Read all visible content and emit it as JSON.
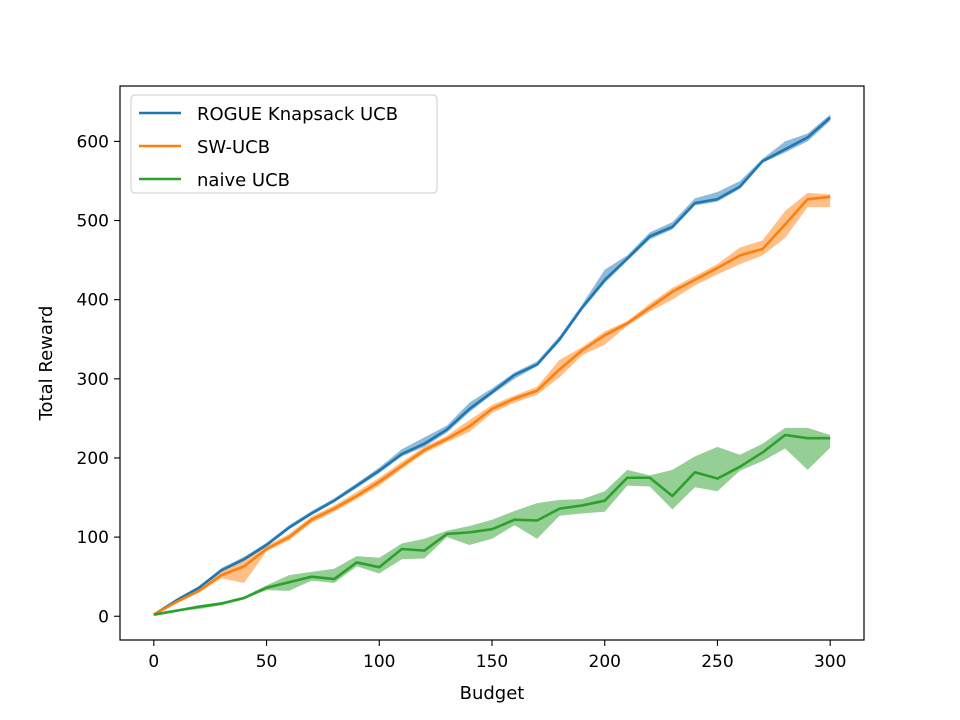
{
  "chart_data": {
    "type": "line",
    "xlabel": "Budget",
    "ylabel": "Total Reward",
    "xlim": [
      -15,
      315
    ],
    "ylim": [
      -30,
      670
    ],
    "xticks": [
      0,
      50,
      100,
      150,
      200,
      250,
      300
    ],
    "yticks": [
      0,
      100,
      200,
      300,
      400,
      500,
      600
    ],
    "grid": false,
    "legend_position": "upper-left",
    "x": [
      0,
      10,
      20,
      30,
      40,
      50,
      60,
      70,
      80,
      90,
      100,
      110,
      120,
      130,
      140,
      150,
      160,
      170,
      180,
      190,
      200,
      210,
      220,
      230,
      240,
      250,
      260,
      270,
      280,
      290,
      300
    ],
    "series": [
      {
        "name": "ROGUE Knapsack UCB",
        "color": "#1f77b4",
        "values": [
          2,
          20,
          36,
          58,
          72,
          90,
          112,
          130,
          146,
          165,
          184,
          205,
          218,
          236,
          262,
          283,
          305,
          318,
          350,
          390,
          425,
          452,
          480,
          492,
          522,
          527,
          543,
          575,
          590,
          605,
          630
        ],
        "lower": [
          2,
          19,
          34,
          56,
          70,
          88,
          110,
          128,
          144,
          162,
          181,
          202,
          214,
          232,
          258,
          280,
          300,
          316,
          347,
          387,
          421,
          449,
          476,
          489,
          519,
          524,
          540,
          573,
          586,
          600,
          626
        ],
        "upper": [
          2,
          22,
          38,
          61,
          75,
          93,
          115,
          133,
          149,
          168,
          188,
          211,
          226,
          241,
          270,
          288,
          308,
          322,
          354,
          394,
          438,
          456,
          485,
          498,
          528,
          536,
          550,
          578,
          600,
          610,
          634
        ]
      },
      {
        "name": "SW-UCB",
        "color": "#ff7f0e",
        "values": [
          2,
          18,
          32,
          52,
          63,
          85,
          100,
          122,
          136,
          152,
          170,
          190,
          210,
          224,
          240,
          262,
          275,
          285,
          312,
          336,
          355,
          370,
          390,
          410,
          425,
          440,
          456,
          464,
          495,
          527,
          530
        ],
        "lower": [
          2,
          16,
          30,
          48,
          42,
          82,
          96,
          118,
          132,
          148,
          165,
          186,
          206,
          220,
          233,
          257,
          270,
          280,
          302,
          330,
          343,
          367,
          385,
          400,
          418,
          432,
          445,
          456,
          478,
          517,
          517
        ],
        "upper": [
          2,
          20,
          35,
          57,
          74,
          89,
          104,
          126,
          140,
          157,
          175,
          195,
          214,
          228,
          248,
          267,
          279,
          290,
          324,
          340,
          360,
          373,
          395,
          415,
          430,
          445,
          466,
          475,
          512,
          535,
          533
        ]
      },
      {
        "name": "naive UCB",
        "color": "#2ca02c",
        "values": [
          2,
          7,
          12,
          16,
          23,
          36,
          43,
          50,
          47,
          68,
          62,
          85,
          83,
          104,
          106,
          110,
          122,
          121,
          136,
          140,
          146,
          175,
          175,
          152,
          182,
          174,
          189,
          207,
          229,
          225,
          225
        ],
        "lower": [
          2,
          6,
          9,
          14,
          22,
          33,
          32,
          45,
          42,
          63,
          54,
          72,
          73,
          100,
          90,
          98,
          115,
          98,
          127,
          130,
          132,
          165,
          164,
          135,
          163,
          158,
          184,
          196,
          212,
          185,
          213
        ],
        "upper": [
          2,
          8,
          14,
          18,
          25,
          39,
          52,
          56,
          60,
          76,
          74,
          92,
          98,
          108,
          114,
          122,
          133,
          143,
          147,
          148,
          158,
          185,
          178,
          185,
          202,
          214,
          204,
          218,
          238,
          238,
          229
        ]
      }
    ]
  }
}
